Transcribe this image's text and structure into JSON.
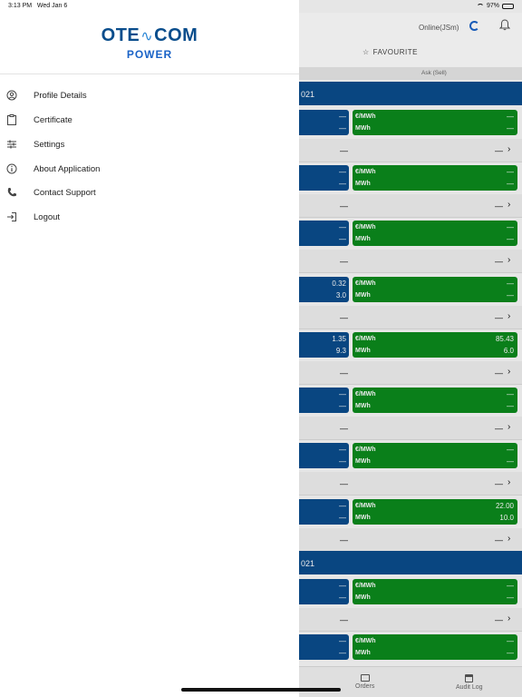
{
  "status": {
    "time": "3:13 PM",
    "date": "Wed Jan 6",
    "battery": "97%"
  },
  "app": {
    "online_status": "Online(JSm)",
    "favourite_label": "FAVOURITE",
    "column_header": "Ask (Sell)",
    "date_bands": [
      "021",
      "021"
    ],
    "rows": [
      {
        "bid1": "—",
        "bid2": "—",
        "unit1": "€/MWh",
        "unit2": "MWh",
        "ask1": "—",
        "ask2": "—",
        "d1": "—",
        "d2": "—"
      },
      {
        "bid1": "—",
        "bid2": "—",
        "unit1": "€/MWh",
        "unit2": "MWh",
        "ask1": "—",
        "ask2": "—",
        "d1": "—",
        "d2": "—"
      },
      {
        "bid1": "—",
        "bid2": "—",
        "unit1": "€/MWh",
        "unit2": "MWh",
        "ask1": "—",
        "ask2": "—",
        "d1": "—",
        "d2": "—"
      },
      {
        "bid1": "0.32",
        "bid2": "3.0",
        "unit1": "€/MWh",
        "unit2": "MWh",
        "ask1": "—",
        "ask2": "—",
        "d1": "—",
        "d2": "—"
      },
      {
        "bid1": "1.35",
        "bid2": "9.3",
        "unit1": "€/MWh",
        "unit2": "MWh",
        "ask1": "85.43",
        "ask2": "6.0",
        "d1": "—",
        "d2": "—"
      },
      {
        "bid1": "—",
        "bid2": "—",
        "unit1": "€/MWh",
        "unit2": "MWh",
        "ask1": "—",
        "ask2": "—",
        "d1": "—",
        "d2": "—"
      },
      {
        "bid1": "—",
        "bid2": "—",
        "unit1": "€/MWh",
        "unit2": "MWh",
        "ask1": "—",
        "ask2": "—",
        "d1": "—",
        "d2": "—"
      },
      {
        "bid1": "—",
        "bid2": "—",
        "unit1": "€/MWh",
        "unit2": "MWh",
        "ask1": "22.00",
        "ask2": "10.0",
        "d1": "—",
        "d2": "—"
      },
      {
        "bid1": "—",
        "bid2": "—",
        "unit1": "€/MWh",
        "unit2": "MWh",
        "ask1": "—",
        "ask2": "—",
        "d1": "—",
        "d2": "—"
      },
      {
        "bid1": "—",
        "bid2": "—",
        "unit1": "€/MWh",
        "unit2": "MWh",
        "ask1": "—",
        "ask2": "—",
        "d1": "",
        "d2": ""
      }
    ],
    "bottom_nav": {
      "orders": "Orders",
      "audit_log": "Audit Log"
    }
  },
  "drawer": {
    "logo_left": "OTE",
    "logo_right": "COM",
    "logo_sub": "POWER",
    "menu": [
      {
        "label": "Profile Details",
        "icon": "profile-icon"
      },
      {
        "label": "Certificate",
        "icon": "certificate-icon"
      },
      {
        "label": "Settings",
        "icon": "settings-sliders-icon"
      },
      {
        "label": "About Application",
        "icon": "info-icon"
      },
      {
        "label": "Contact Support",
        "icon": "phone-icon"
      },
      {
        "label": "Logout",
        "icon": "logout-icon"
      }
    ]
  },
  "colors": {
    "bid_blue": "#0a4d8c",
    "ask_green": "#0b8a1d",
    "brand": "#0a4d8c"
  }
}
